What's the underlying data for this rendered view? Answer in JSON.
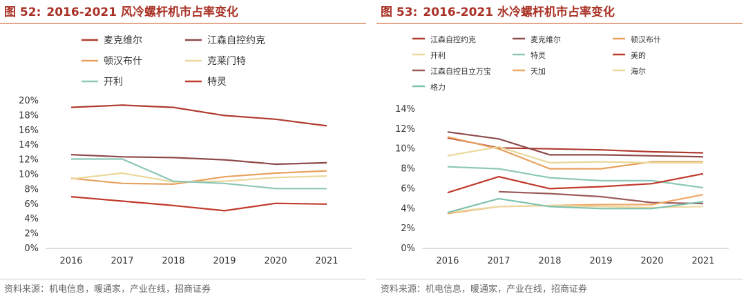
{
  "panels": [
    {
      "figure_label": "图 52:",
      "title": "2016-2021 风冷螺杆机市占率变化",
      "source": "资料来源：机电信息，暖通家，产业在线，招商证券"
    },
    {
      "figure_label": "图 53:",
      "title": "2016-2021 水冷螺杆机市占率变化",
      "source": "资料来源：机电信息，暖通家，产业在线，招商证券"
    }
  ],
  "chart_data": [
    {
      "type": "line",
      "title": "2016-2021 风冷螺杆机市占率变化",
      "x": [
        "2016",
        "2017",
        "2018",
        "2019",
        "2020",
        "2021"
      ],
      "ylim": [
        0,
        20
      ],
      "yticks": [
        "0%",
        "2%",
        "4%",
        "6%",
        "8%",
        "10%",
        "12%",
        "14%",
        "16%",
        "18%",
        "20%"
      ],
      "grid": false,
      "legend_position": "top",
      "series": [
        {
          "name": "麦克维尔",
          "color": "#b03a2e",
          "values": [
            19.1,
            19.4,
            19.1,
            18.0,
            17.5,
            16.6
          ]
        },
        {
          "name": "江森自控约克",
          "color": "#8e4a4a",
          "values": [
            12.7,
            12.4,
            12.3,
            12.0,
            11.4,
            11.6
          ]
        },
        {
          "name": "顿汉布什",
          "color": "#e8a15e",
          "values": [
            9.5,
            8.8,
            8.7,
            9.7,
            10.2,
            10.5
          ]
        },
        {
          "name": "克莱门特",
          "color": "#ead79a",
          "values": [
            9.4,
            10.2,
            9.0,
            9.1,
            9.6,
            9.8
          ]
        },
        {
          "name": "开利",
          "color": "#8cc7b8",
          "values": [
            12.1,
            12.1,
            9.1,
            8.8,
            8.1,
            8.1
          ]
        },
        {
          "name": "特灵",
          "color": "#c0392b",
          "values": [
            7.0,
            6.4,
            5.8,
            5.1,
            6.1,
            6.0
          ]
        }
      ]
    },
    {
      "type": "line",
      "title": "2016-2021 水冷螺杆机市占率变化",
      "x": [
        "2016",
        "2017",
        "2018",
        "2019",
        "2020",
        "2021"
      ],
      "ylim": [
        0,
        14
      ],
      "yticks": [
        "0%",
        "2%",
        "4%",
        "6%",
        "8%",
        "10%",
        "12%",
        "14%"
      ],
      "grid": false,
      "legend_position": "top",
      "series": [
        {
          "name": "江森自控约克",
          "color": "#b03a2e",
          "values": [
            11.1,
            10.1,
            10.0,
            9.9,
            9.7,
            9.6
          ]
        },
        {
          "name": "麦克维尔",
          "color": "#8e4a4a",
          "values": [
            11.7,
            11.0,
            9.4,
            9.4,
            9.3,
            9.2
          ]
        },
        {
          "name": "顿汉布什",
          "color": "#e8a15e",
          "values": [
            11.2,
            10.0,
            8.0,
            8.0,
            8.7,
            8.7
          ]
        },
        {
          "name": "开利",
          "color": "#ead79a",
          "values": [
            9.3,
            10.2,
            8.6,
            8.7,
            8.6,
            8.6
          ]
        },
        {
          "name": "特灵",
          "color": "#8cc7b8",
          "values": [
            8.2,
            8.0,
            7.1,
            6.8,
            6.8,
            6.1
          ]
        },
        {
          "name": "美的",
          "color": "#c0392b",
          "values": [
            5.6,
            7.2,
            6.0,
            6.2,
            6.5,
            7.5
          ]
        },
        {
          "name": "江森自控日立万宝",
          "color": "#9c5a5a",
          "values": [
            null,
            5.7,
            5.5,
            5.2,
            4.6,
            4.5
          ]
        },
        {
          "name": "天加",
          "color": "#f0a868",
          "values": [
            3.5,
            4.2,
            4.3,
            4.4,
            4.4,
            5.4
          ]
        },
        {
          "name": "海尔",
          "color": "#ecd89e",
          "values": [
            3.6,
            4.2,
            4.3,
            4.2,
            4.1,
            4.2
          ]
        },
        {
          "name": "格力",
          "color": "#7ec2ae",
          "values": [
            3.6,
            5.0,
            4.2,
            4.0,
            4.0,
            4.7
          ]
        }
      ]
    }
  ]
}
